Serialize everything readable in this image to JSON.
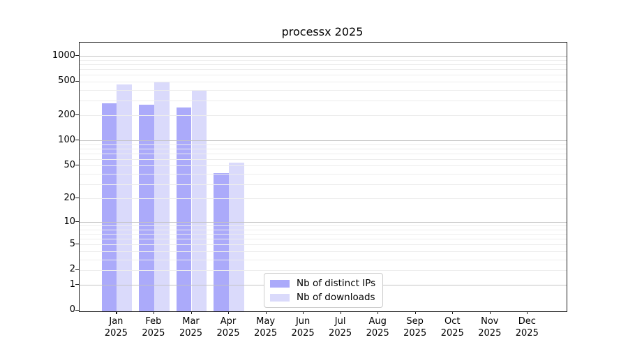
{
  "figure": {
    "background": "#ffffff"
  },
  "chart_data": {
    "type": "bar",
    "title": "processx 2025",
    "categories": [
      "Jan 2025",
      "Feb 2025",
      "Mar 2025",
      "Apr 2025",
      "May 2025",
      "Jun 2025",
      "Jul 2025",
      "Aug 2025",
      "Sep 2025",
      "Oct 2025",
      "Nov 2025",
      "Dec 2025"
    ],
    "x_tick_months": [
      "Jan",
      "Feb",
      "Mar",
      "Apr",
      "May",
      "Jun",
      "Jul",
      "Aug",
      "Sep",
      "Oct",
      "Nov",
      "Dec"
    ],
    "x_tick_year": "2025",
    "series": [
      {
        "name": "Nb of distinct IPs",
        "color": "#abaafa",
        "values": [
          276,
          266,
          248,
          41,
          null,
          null,
          null,
          null,
          null,
          null,
          null,
          null
        ]
      },
      {
        "name": "Nb of downloads",
        "color": "#dadafb",
        "values": [
          460,
          490,
          396,
          54,
          null,
          null,
          null,
          null,
          null,
          null,
          null,
          null
        ]
      }
    ],
    "y_ticks": [
      0,
      1,
      2,
      5,
      10,
      20,
      50,
      100,
      200,
      500,
      1000
    ],
    "y_scale": "log1p",
    "ylim": [
      0,
      1400
    ],
    "grid": "on",
    "legend_position": "lower-center-inside"
  },
  "colors": {
    "grid_major": "#c3c3c3",
    "grid_minor": "#ededed",
    "spine": "#1a1a1a",
    "text": "#000000"
  }
}
